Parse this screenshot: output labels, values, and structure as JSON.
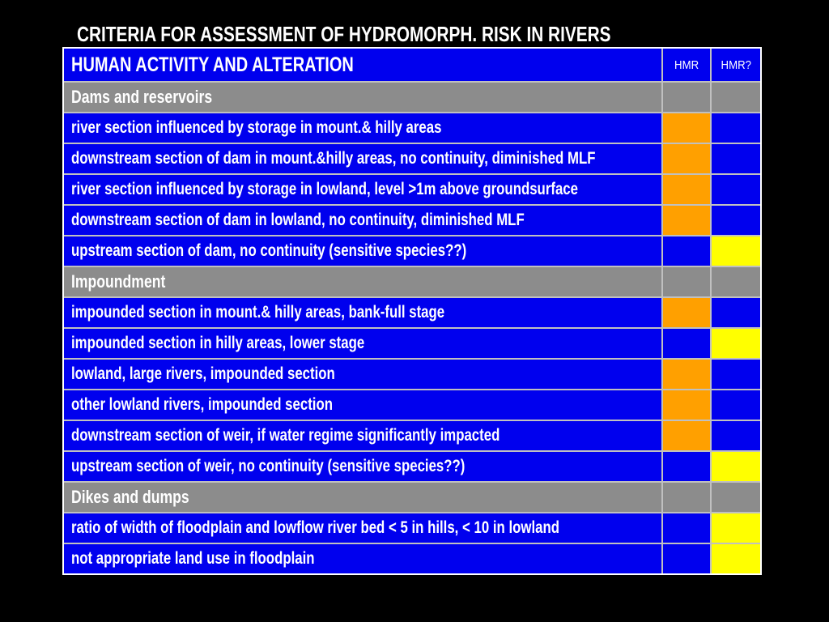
{
  "slide": {
    "title": "CRITERIA FOR ASSESSMENT OF HYDROMORPH. RISK IN RIVERS"
  },
  "colors": {
    "blue": "#0000EE",
    "orange": "#FFA000",
    "yellow": "#FFFF00",
    "gray": "#8C8C8C",
    "grid": "#C0C0C0",
    "table_border": "#FFFFFF",
    "background": "#000000",
    "text": "#FFFFFF"
  },
  "table": {
    "header": {
      "activity": "HUMAN ACTIVITY AND ALTERATION",
      "hmr": "HMR",
      "hmr_q": "HMR?"
    },
    "rows": [
      {
        "type": "section",
        "label": "Dams and reservoirs",
        "row_color": "gray",
        "hmr": "gray",
        "hmr_q": "gray"
      },
      {
        "type": "data",
        "label": "river section influenced by storage in mount.& hilly areas",
        "row_color": "blue",
        "hmr": "orange",
        "hmr_q": "blue"
      },
      {
        "type": "data",
        "label": "downstream section of dam in mount.&hilly areas, no continuity, diminished MLF",
        "row_color": "blue",
        "hmr": "orange",
        "hmr_q": "blue"
      },
      {
        "type": "data",
        "label": "river section influenced by storage in lowland, level >1m above groundsurface",
        "row_color": "blue",
        "hmr": "orange",
        "hmr_q": "blue"
      },
      {
        "type": "data",
        "label": "downstream section of dam in lowland, no continuity, diminished MLF",
        "row_color": "blue",
        "hmr": "orange",
        "hmr_q": "blue"
      },
      {
        "type": "data",
        "label": "upstream section of dam, no continuity (sensitive species??)",
        "row_color": "blue",
        "hmr": "blue",
        "hmr_q": "yellow"
      },
      {
        "type": "section",
        "label": "Impoundment",
        "row_color": "gray",
        "hmr": "gray",
        "hmr_q": "gray"
      },
      {
        "type": "data",
        "label": "impounded section in mount.& hilly areas, bank-full stage",
        "row_color": "blue",
        "hmr": "orange",
        "hmr_q": "blue"
      },
      {
        "type": "data",
        "label": "impounded section in hilly areas, lower stage",
        "row_color": "blue",
        "hmr": "blue",
        "hmr_q": "yellow"
      },
      {
        "type": "data",
        "label": "lowland, large rivers, impounded section",
        "row_color": "blue",
        "hmr": "orange",
        "hmr_q": "blue"
      },
      {
        "type": "data",
        "label": "other lowland rivers, impounded section",
        "row_color": "blue",
        "hmr": "orange",
        "hmr_q": "blue"
      },
      {
        "type": "data",
        "label": "downstream section of weir, if water regime significantly impacted",
        "row_color": "blue",
        "hmr": "orange",
        "hmr_q": "blue"
      },
      {
        "type": "data",
        "label": " upstream section of weir, no continuity (sensitive species??)",
        "row_color": "blue",
        "hmr": "blue",
        "hmr_q": "yellow"
      },
      {
        "type": "section",
        "label": "Dikes and dumps",
        "row_color": "gray",
        "hmr": "gray",
        "hmr_q": "gray"
      },
      {
        "type": "data",
        "label": "ratio of width of floodplain and lowflow river bed < 5 in hills, < 10 in lowland",
        "row_color": "blue",
        "hmr": "blue",
        "hmr_q": "yellow"
      },
      {
        "type": "data",
        "label": "not appropriate land use in  floodplain",
        "row_color": "blue",
        "hmr": "blue",
        "hmr_q": "yellow"
      }
    ]
  }
}
